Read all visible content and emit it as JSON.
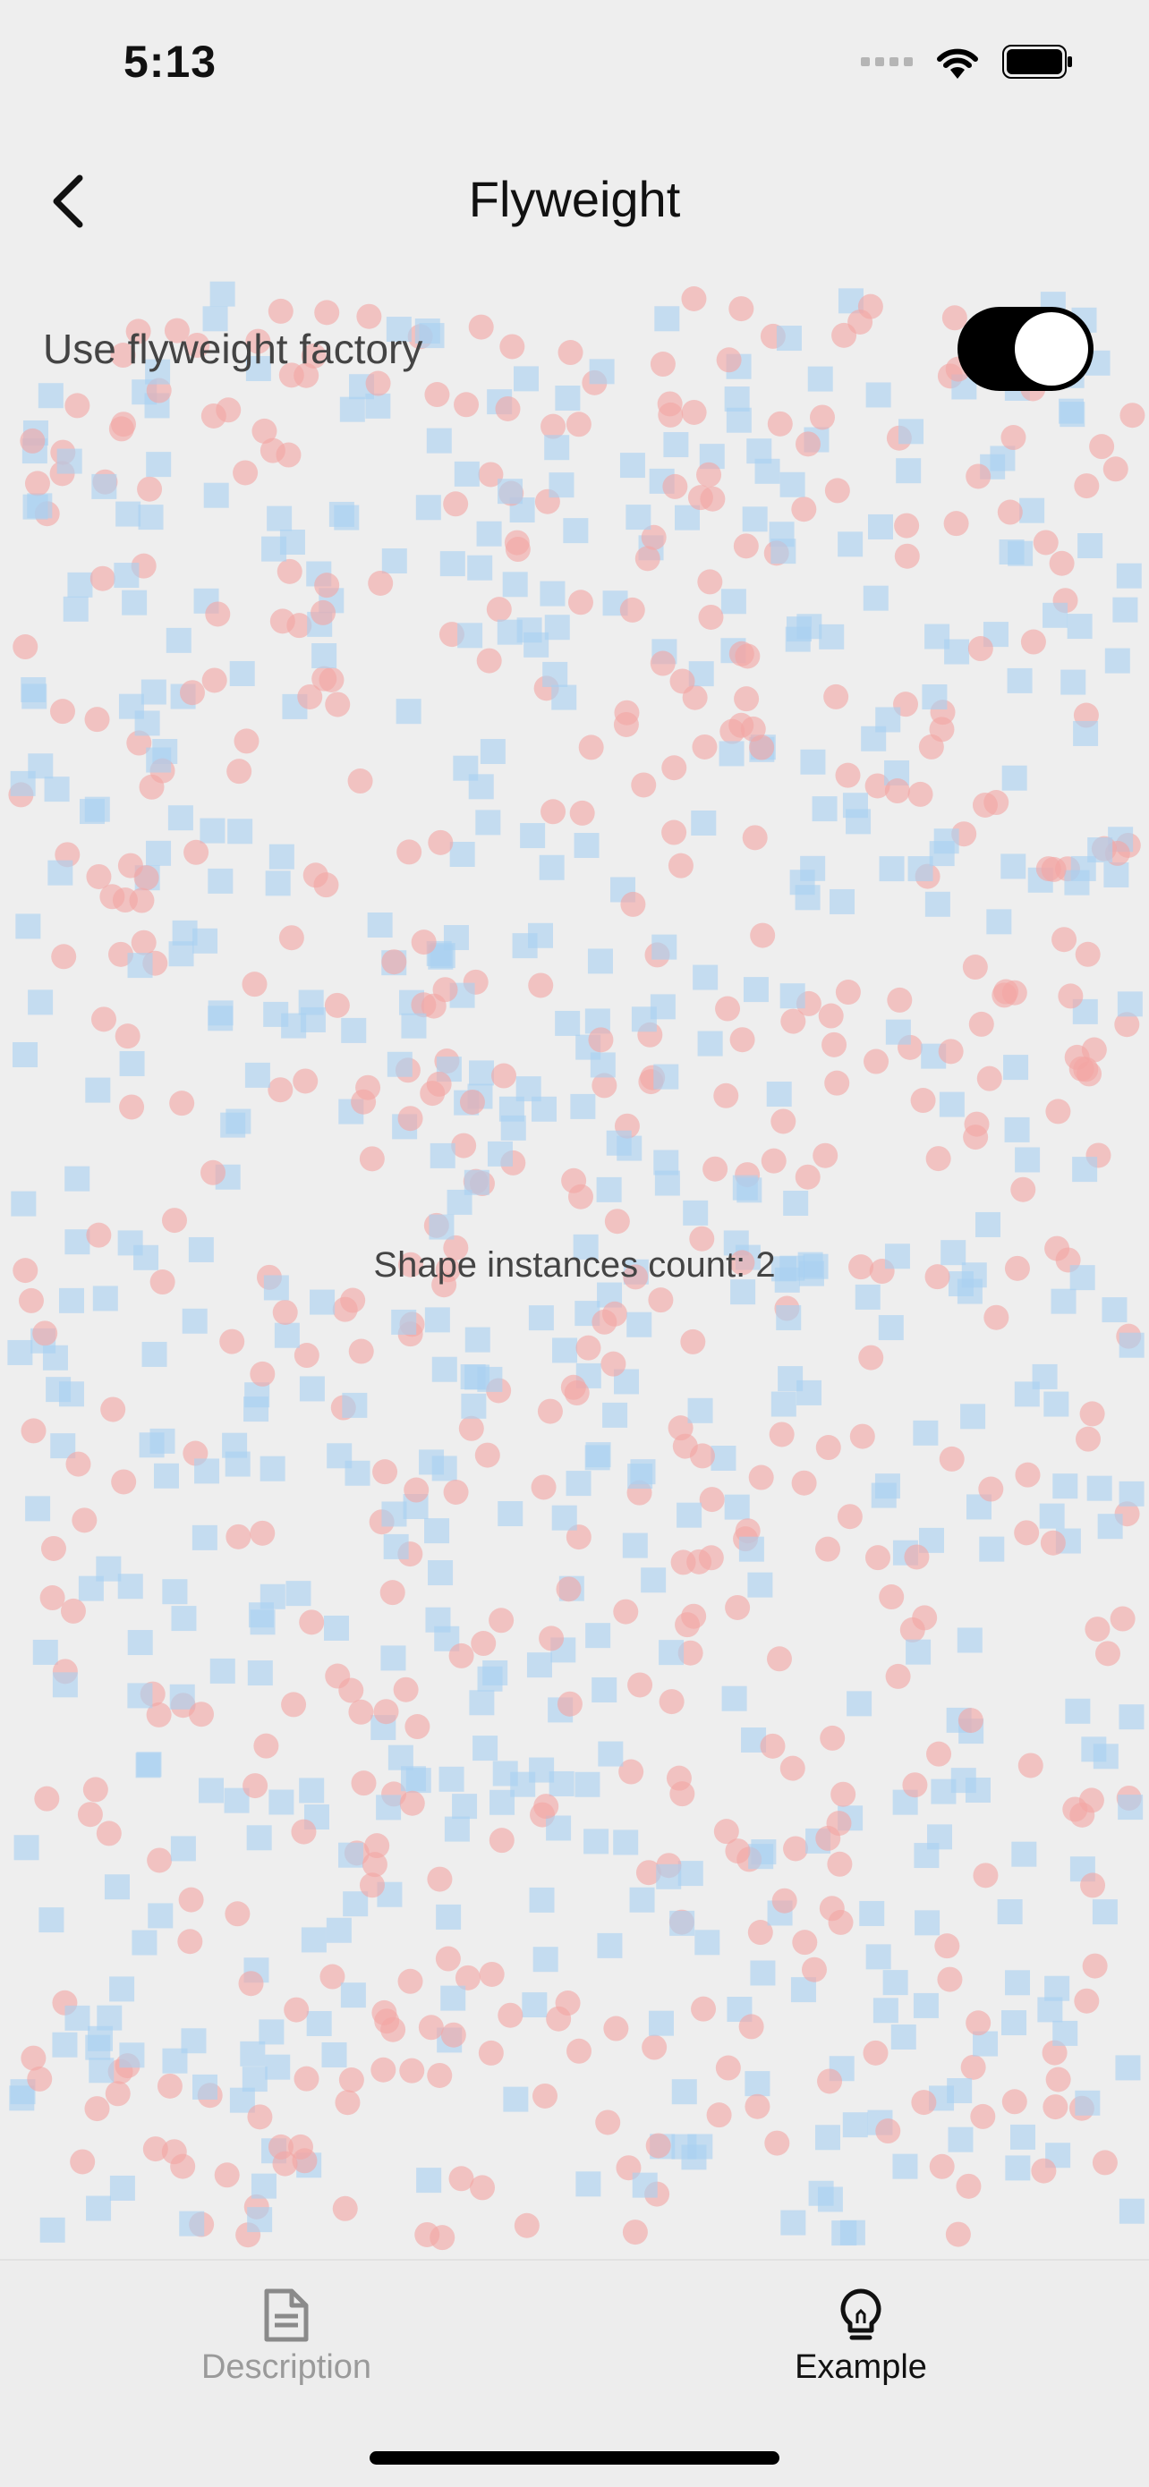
{
  "status_bar": {
    "time": "5:13"
  },
  "app_bar": {
    "title": "Flyweight"
  },
  "toggle": {
    "label": "Use flyweight factory",
    "checked": true
  },
  "instances": {
    "label": "Shape instances count: 2"
  },
  "shape_colors": {
    "circle": "#f4a5a3",
    "square": "#a8d0f2"
  },
  "bottom_nav": {
    "items": [
      {
        "label": "Description",
        "icon": "document-icon",
        "active": false
      },
      {
        "label": "Example",
        "icon": "lightbulb-icon",
        "active": true
      }
    ]
  }
}
